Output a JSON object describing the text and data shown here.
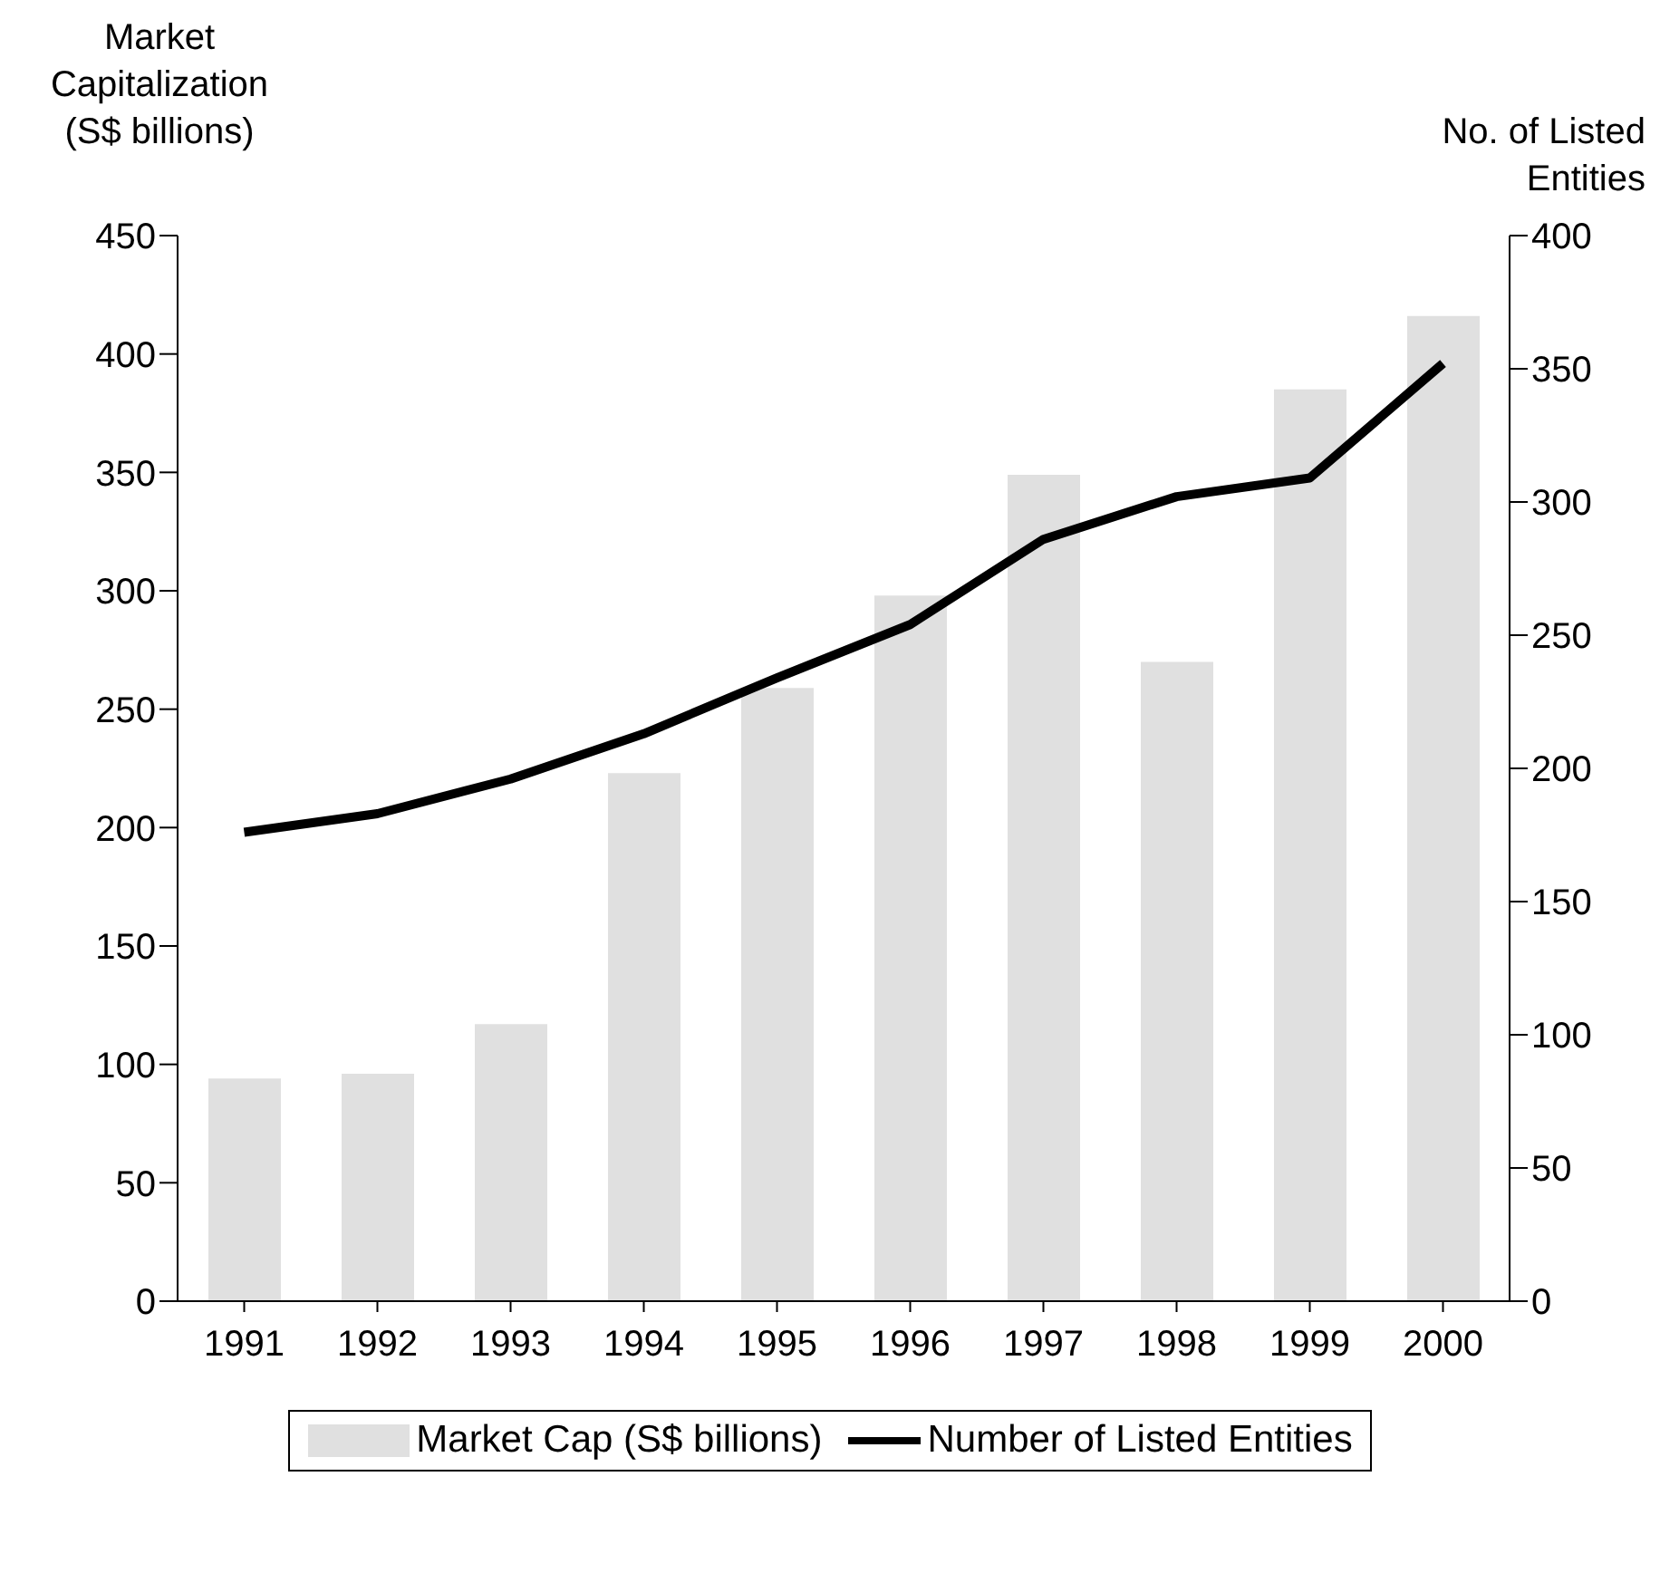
{
  "chart_data": {
    "type": "bar",
    "ylabel": "Market Capitalization (S$ billions)",
    "y2label": "No. of Listed Entities",
    "categories": [
      "1991",
      "1992",
      "1993",
      "1994",
      "1995",
      "1996",
      "1997",
      "1998",
      "1999",
      "2000"
    ],
    "series": [
      {
        "name": "Market Cap (S$ billions)",
        "color": "#e0e0e0",
        "values": [
          94,
          96,
          117,
          223,
          259,
          298,
          349,
          270,
          385,
          416
        ]
      },
      {
        "name": "Number of Listed Entities",
        "type": "line",
        "axis": "y2",
        "color": "#000000",
        "values": [
          176,
          183,
          196,
          213,
          234,
          254,
          286,
          302,
          309,
          352
        ]
      }
    ],
    "ylim": [
      0,
      450
    ],
    "yticks": [
      0,
      50,
      100,
      150,
      200,
      250,
      300,
      350,
      400,
      450
    ],
    "y2lim": [
      0,
      400
    ],
    "y2ticks": [
      0,
      50,
      100,
      150,
      200,
      250,
      300,
      350,
      400
    ],
    "grid": false,
    "legend": "bottom",
    "marker": "none",
    "line_style": "solid"
  }
}
